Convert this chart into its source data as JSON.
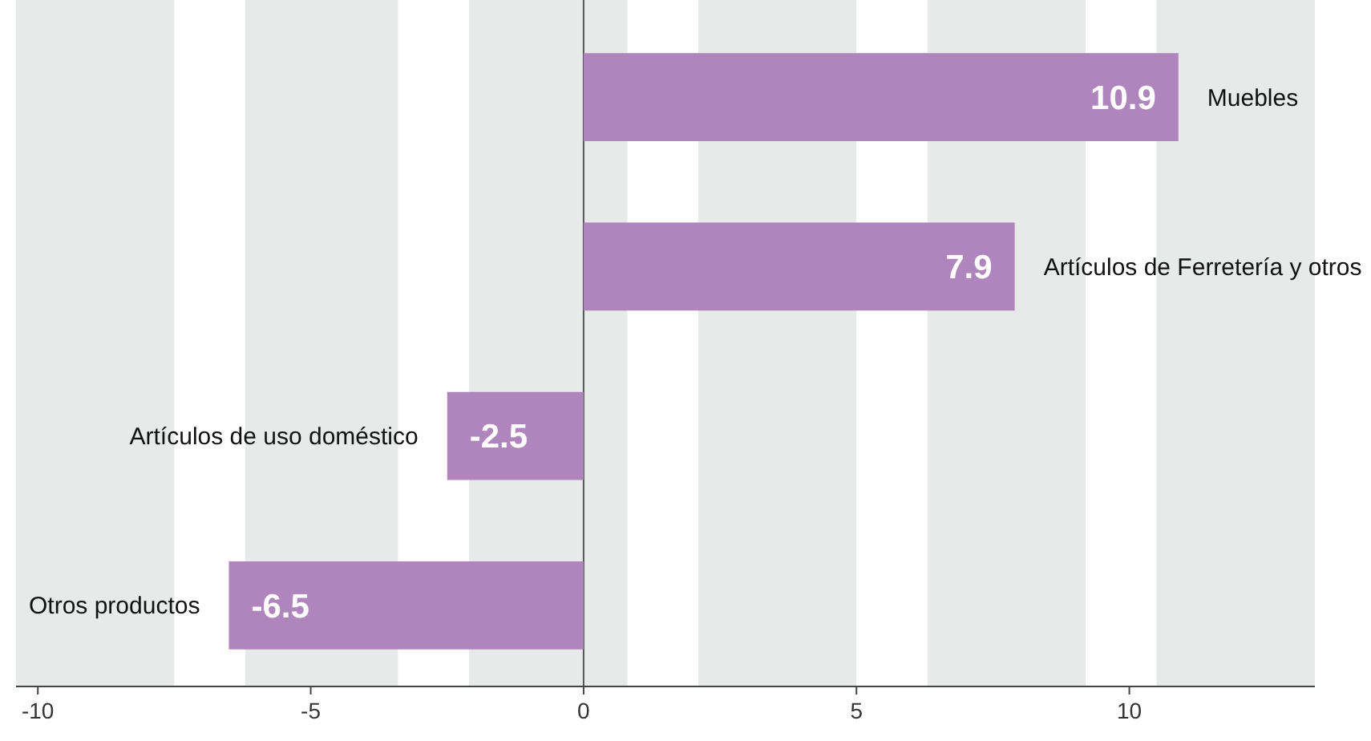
{
  "chart_data": {
    "type": "bar",
    "orientation": "horizontal",
    "categories": [
      "Muebles",
      "Artículos de Ferretería y otros",
      "Artículos de uso doméstico",
      "Otros productos"
    ],
    "values": [
      10.9,
      7.9,
      -2.5,
      -6.5
    ],
    "color": "#b085bd",
    "data_labels": true,
    "xlim": [
      -10.4,
      13.4
    ],
    "xticks": [
      -10,
      -5,
      0,
      5,
      10
    ],
    "bands": [
      {
        "axis": "x",
        "from": -10.4,
        "to": -7.5,
        "color": "#e8e9e9"
      },
      {
        "axis": "x",
        "from": -6.2,
        "to": -3.4,
        "color": "#e8e9e9"
      },
      {
        "axis": "x",
        "from": -2.1,
        "to": 0.8,
        "color": "#e8e9e9"
      },
      {
        "axis": "x",
        "from": 2.1,
        "to": 5.0,
        "color": "#e8e9e9"
      },
      {
        "axis": "x",
        "from": 6.3,
        "to": 9.2,
        "color": "#e8e9e9"
      },
      {
        "axis": "x",
        "from": 10.5,
        "to": 13.4,
        "color": "#e8e9e9"
      }
    ]
  }
}
